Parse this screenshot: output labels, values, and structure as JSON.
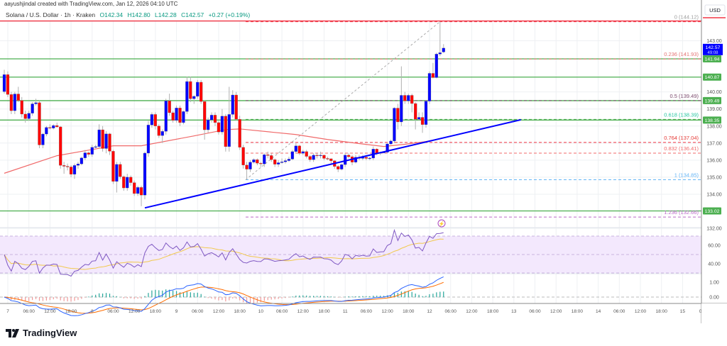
{
  "header": {
    "credit": "aayushjindal created with TradingView.com, Jan 12, 2026 04:10 UTC",
    "symbol": "Solana / U.S. Dollar · 1h · Kraken",
    "open": "O142.34",
    "high": "H142.80",
    "low": "L142.28",
    "close": "C142.57",
    "change": "+0.27 (+0.19%)"
  },
  "axis": {
    "currency": "USD",
    "price_ticks": [
      "143.00",
      "140.00",
      "139.00",
      "138.00",
      "137.00",
      "136.00",
      "135.00",
      "134.00",
      "132.00"
    ],
    "price_tick_values": [
      143,
      140,
      139,
      138,
      137,
      136,
      135,
      134,
      132
    ],
    "rsi_ticks": [
      "60.00",
      "40.00"
    ],
    "rsi_tick_values": [
      60,
      40
    ],
    "macd_ticks": [
      "1.00",
      "0.00"
    ],
    "macd_tick_values": [
      1,
      0
    ],
    "time_labels": [
      "7",
      "06:00",
      "12:00",
      "18:00",
      "8",
      "06:00",
      "12:00",
      "18:00",
      "9",
      "06:00",
      "12:00",
      "18:00",
      "10",
      "06:00",
      "12:00",
      "18:00",
      "11",
      "06:00",
      "12:00",
      "18:00",
      "12",
      "06:00",
      "12:00",
      "18:00",
      "13",
      "06:00",
      "12:00",
      "18:00",
      "14",
      "06:00",
      "12:00",
      "18:00",
      "15",
      "06:0"
    ]
  },
  "current_price": {
    "price": "142.57",
    "countdown": "49:08",
    "value": 142.57,
    "color": "#0000ff"
  },
  "levels": [
    {
      "label": "141.94",
      "value": 141.94
    },
    {
      "label": "140.87",
      "value": 140.87
    },
    {
      "label": "139.49",
      "value": 139.49
    },
    {
      "label": "138.35",
      "value": 138.35
    },
    {
      "label": "133.02",
      "value": 133.02
    }
  ],
  "resistance_top": {
    "value": 144.12,
    "color": "#f23645"
  },
  "fib": [
    {
      "label": "0 (144.12)",
      "value": 144.12,
      "color": "#f23645",
      "text": "#9e9e9e"
    },
    {
      "label": "0.236 (141.93)",
      "value": 141.93,
      "color": "#e57373",
      "text": "#e57373"
    },
    {
      "label": "0.5 (139.49)",
      "value": 139.49,
      "color": "#7b4a6d",
      "text": "#7b4a6d"
    },
    {
      "label": "0.618 (138.39)",
      "value": 138.39,
      "color": "#4caf50",
      "text": "#26c6a0"
    },
    {
      "label": "0.764 (137.04)",
      "value": 137.04,
      "color": "#f23645",
      "text": "#e53935"
    },
    {
      "label": "0.832 (136.41)",
      "value": 136.41,
      "color": "#f06a6a",
      "text": "#f06a6a"
    },
    {
      "label": "1 (134.85)",
      "value": 134.85,
      "color": "#64b5f6",
      "text": "#64b5f6"
    },
    {
      "label": "1.236 (132.66)",
      "value": 132.66,
      "color": "#ba68c8",
      "text": "#ba68c8"
    }
  ],
  "trendline": {
    "from": {
      "candle": 40,
      "price": 133.2
    },
    "to": {
      "candle": 147,
      "price": 138.37
    },
    "color": "#0000ff"
  },
  "colors": {
    "up": "#0000ff",
    "down": "#ff0000",
    "level": "#4caf50",
    "ma": "#f06a6a",
    "rsi": "#7e57c2",
    "rsi_ma": "#f2c94c",
    "macd": "#2962ff",
    "signal": "#ff6d00"
  },
  "chart_data": {
    "type": "candlestick",
    "timeframe": "1h",
    "ylim": [
      132,
      144.6
    ],
    "candles": [
      [
        140.02,
        141.3,
        139.9,
        141.02
      ],
      [
        141.02,
        141.2,
        139.7,
        139.85
      ],
      [
        139.85,
        140.0,
        138.7,
        138.9
      ],
      [
        138.9,
        140.0,
        138.7,
        139.88
      ],
      [
        139.88,
        140.3,
        139.4,
        139.5
      ],
      [
        139.5,
        139.7,
        138.5,
        138.7
      ],
      [
        138.7,
        138.9,
        138.2,
        138.43
      ],
      [
        138.43,
        138.9,
        138.3,
        138.75
      ],
      [
        138.75,
        139.4,
        138.6,
        139.3
      ],
      [
        139.3,
        139.6,
        139.2,
        139.37
      ],
      [
        139.37,
        139.5,
        136.7,
        136.89
      ],
      [
        136.89,
        137.6,
        136.7,
        137.53
      ],
      [
        137.53,
        138.0,
        137.4,
        137.92
      ],
      [
        137.92,
        138.1,
        137.8,
        137.88
      ],
      [
        137.88,
        138.1,
        137.8,
        138.03
      ],
      [
        138.03,
        138.2,
        137.9,
        137.95
      ],
      [
        137.95,
        138.0,
        135.5,
        135.69
      ],
      [
        135.69,
        135.9,
        135.2,
        135.64
      ],
      [
        135.64,
        135.8,
        135.4,
        135.6
      ],
      [
        135.6,
        135.7,
        135.0,
        135.17
      ],
      [
        135.17,
        135.8,
        134.9,
        135.69
      ],
      [
        135.69,
        135.9,
        135.5,
        135.78
      ],
      [
        135.78,
        136.2,
        135.7,
        136.13
      ],
      [
        136.13,
        136.6,
        136.0,
        136.43
      ],
      [
        136.43,
        136.5,
        136.2,
        136.34
      ],
      [
        136.34,
        136.9,
        136.2,
        136.75
      ],
      [
        136.75,
        136.9,
        136.7,
        136.79
      ],
      [
        136.79,
        138.1,
        136.7,
        137.78
      ],
      [
        137.78,
        138.0,
        136.5,
        136.68
      ],
      [
        136.68,
        137.7,
        136.4,
        137.54
      ],
      [
        137.54,
        137.6,
        136.3,
        136.52
      ],
      [
        136.52,
        136.6,
        134.6,
        134.75
      ],
      [
        134.75,
        135.9,
        134.1,
        135.75
      ],
      [
        135.75,
        135.9,
        134.9,
        135.03
      ],
      [
        135.03,
        135.1,
        134.2,
        134.37
      ],
      [
        134.37,
        135.2,
        134.2,
        135.0
      ],
      [
        135.0,
        135.1,
        134.5,
        134.68
      ],
      [
        134.68,
        134.8,
        133.9,
        134.04
      ],
      [
        134.04,
        134.5,
        133.9,
        134.4
      ],
      [
        134.4,
        134.5,
        133.3,
        133.95
      ],
      [
        133.95,
        136.5,
        133.7,
        136.41
      ],
      [
        136.41,
        138.3,
        136.2,
        138.06
      ],
      [
        138.06,
        138.8,
        137.9,
        138.68
      ],
      [
        138.68,
        138.8,
        137.8,
        138.0
      ],
      [
        138.0,
        138.1,
        137.3,
        137.44
      ],
      [
        137.44,
        137.8,
        137.0,
        137.69
      ],
      [
        137.69,
        139.6,
        137.5,
        139.48
      ],
      [
        139.48,
        139.9,
        138.6,
        138.78
      ],
      [
        138.78,
        138.9,
        138.2,
        138.33
      ],
      [
        138.33,
        139.2,
        138.2,
        139.06
      ],
      [
        139.06,
        139.2,
        138.0,
        138.2
      ],
      [
        138.2,
        138.9,
        138.1,
        138.85
      ],
      [
        138.85,
        140.9,
        138.7,
        140.61
      ],
      [
        140.61,
        140.9,
        139.4,
        139.6
      ],
      [
        139.6,
        139.8,
        139.3,
        139.74
      ],
      [
        139.74,
        140.7,
        139.6,
        140.57
      ],
      [
        140.57,
        140.7,
        139.3,
        139.44
      ],
      [
        139.44,
        139.5,
        137.2,
        137.78
      ],
      [
        137.78,
        138.5,
        137.6,
        138.36
      ],
      [
        138.36,
        138.8,
        138.2,
        138.64
      ],
      [
        138.64,
        138.8,
        138.0,
        138.2
      ],
      [
        138.2,
        138.3,
        137.5,
        137.65
      ],
      [
        137.65,
        139.0,
        137.5,
        138.58
      ],
      [
        138.58,
        138.7,
        136.5,
        136.79
      ],
      [
        136.79,
        140.3,
        136.5,
        138.68
      ],
      [
        138.68,
        140.1,
        138.5,
        139.82
      ],
      [
        139.82,
        140.0,
        138.3,
        138.4
      ],
      [
        138.4,
        138.6,
        136.6,
        136.75
      ],
      [
        136.75,
        136.9,
        135.5,
        135.71
      ],
      [
        135.71,
        135.9,
        134.85,
        135.47
      ],
      [
        135.47,
        136.0,
        135.3,
        135.88
      ],
      [
        135.88,
        136.1,
        135.8,
        136.03
      ],
      [
        136.03,
        136.1,
        135.7,
        135.82
      ],
      [
        135.82,
        135.9,
        135.6,
        135.78
      ],
      [
        135.78,
        136.4,
        135.6,
        136.32
      ],
      [
        136.32,
        136.5,
        136.1,
        136.27
      ],
      [
        136.27,
        136.4,
        135.9,
        136.03
      ],
      [
        136.03,
        136.1,
        135.6,
        135.76
      ],
      [
        135.76,
        136.0,
        135.6,
        135.85
      ],
      [
        135.85,
        136.1,
        135.8,
        135.9
      ],
      [
        135.9,
        136.1,
        135.8,
        135.97
      ],
      [
        135.97,
        136.2,
        135.9,
        136.06
      ],
      [
        136.06,
        136.6,
        136.0,
        136.5
      ],
      [
        136.5,
        137.0,
        136.4,
        136.84
      ],
      [
        136.84,
        136.9,
        136.3,
        136.4
      ],
      [
        136.4,
        136.6,
        136.3,
        136.5
      ],
      [
        136.5,
        136.6,
        136.1,
        136.22
      ],
      [
        136.22,
        136.3,
        135.9,
        136.03
      ],
      [
        136.03,
        136.4,
        135.9,
        136.29
      ],
      [
        136.29,
        136.4,
        136.1,
        136.27
      ],
      [
        136.27,
        136.5,
        136.1,
        136.29
      ],
      [
        136.29,
        136.3,
        136.0,
        136.1
      ],
      [
        136.1,
        136.2,
        136.0,
        136.08
      ],
      [
        136.08,
        136.1,
        135.8,
        135.96
      ],
      [
        135.96,
        136.0,
        135.5,
        135.63
      ],
      [
        135.63,
        135.7,
        135.3,
        135.47
      ],
      [
        135.47,
        135.8,
        135.4,
        135.74
      ],
      [
        135.74,
        136.4,
        135.6,
        136.29
      ],
      [
        136.29,
        136.4,
        136.1,
        136.2
      ],
      [
        136.2,
        136.3,
        135.7,
        135.88
      ],
      [
        135.88,
        136.3,
        135.8,
        136.17
      ],
      [
        136.17,
        136.3,
        136.0,
        136.1
      ],
      [
        136.1,
        136.3,
        136.0,
        136.17
      ],
      [
        136.17,
        136.3,
        136.0,
        136.1
      ],
      [
        136.1,
        136.2,
        136.0,
        136.12
      ],
      [
        136.12,
        136.8,
        136.0,
        136.65
      ],
      [
        136.65,
        136.7,
        136.3,
        136.4
      ],
      [
        136.4,
        136.5,
        136.3,
        136.45
      ],
      [
        136.45,
        136.5,
        136.4,
        136.46
      ],
      [
        136.46,
        137.0,
        136.4,
        136.95
      ],
      [
        136.95,
        137.2,
        136.9,
        137.12
      ],
      [
        137.12,
        139.1,
        137.0,
        139.05
      ],
      [
        139.05,
        139.3,
        137.8,
        138.24
      ],
      [
        138.24,
        141.5,
        138.0,
        139.8
      ],
      [
        139.8,
        140.0,
        139.3,
        139.47
      ],
      [
        139.47,
        139.9,
        139.3,
        139.8
      ],
      [
        139.8,
        139.9,
        138.8,
        139.32
      ],
      [
        139.32,
        139.4,
        137.8,
        138.4
      ],
      [
        138.4,
        138.8,
        138.3,
        138.51
      ],
      [
        138.51,
        138.8,
        137.6,
        138.08
      ],
      [
        138.08,
        139.5,
        137.9,
        139.46
      ],
      [
        139.46,
        141.2,
        139.3,
        141.09
      ],
      [
        141.09,
        141.7,
        140.8,
        140.84
      ],
      [
        140.84,
        142.3,
        140.8,
        142.22
      ],
      [
        142.22,
        144.12,
        142.1,
        142.3
      ],
      [
        142.34,
        142.8,
        142.28,
        142.57
      ]
    ],
    "moving_average": [
      [
        0,
        135.23
      ],
      [
        15,
        136.26
      ],
      [
        31,
        136.84
      ],
      [
        39,
        136.84
      ],
      [
        54,
        137.42
      ],
      [
        63,
        137.79
      ],
      [
        67,
        137.83
      ],
      [
        83,
        137.5
      ],
      [
        92,
        137.21
      ],
      [
        101,
        136.97
      ],
      [
        108,
        136.8
      ],
      [
        114,
        136.93
      ],
      [
        120,
        137.09
      ],
      [
        125,
        137.3
      ]
    ],
    "rsi": {
      "upper": 70,
      "lower": 30,
      "middle": 50
    }
  },
  "branding": {
    "logo": "TradingView"
  }
}
